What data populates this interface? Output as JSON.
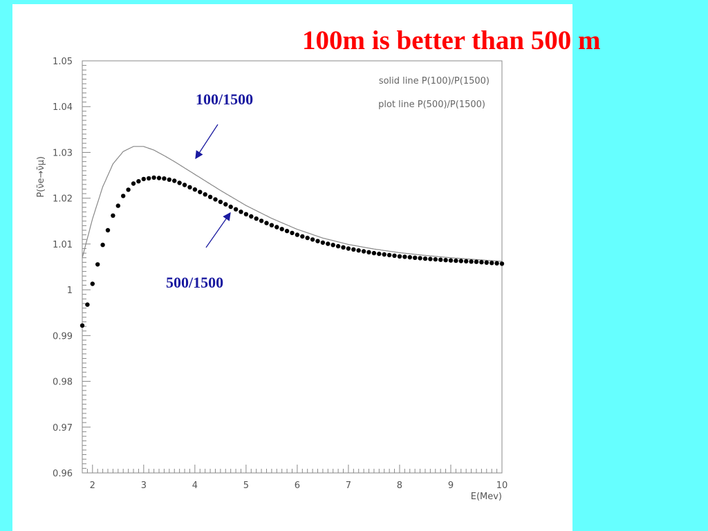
{
  "slide": {
    "title": "100m is better than 500 m",
    "background_color": "#66ffff",
    "title_color": "#ff0000",
    "annotation_color": "#1a1aa0"
  },
  "annotations": {
    "solid_label": "100/1500",
    "dotted_label": "500/1500"
  },
  "chart_data": {
    "type": "line",
    "xlabel": "E(Mev)",
    "ylabel": "P(ν̄e→ν̄μ)",
    "xlim": [
      1.8,
      10
    ],
    "ylim": [
      0.96,
      1.05
    ],
    "x_ticks": [
      "2",
      "3",
      "4",
      "5",
      "6",
      "7",
      "8",
      "9",
      "10"
    ],
    "y_ticks": [
      "0.96",
      "0.97",
      "0.98",
      "0.99",
      "1",
      "1.01",
      "1.02",
      "1.03",
      "1.04",
      "1.05"
    ],
    "grid": false,
    "legend_position": "top-right",
    "legend": [
      "solid line P(100)/P(1500)",
      "plot line P(500)/P(1500)"
    ],
    "series": [
      {
        "style": "solid",
        "color": "#888888",
        "x": [
          1.8,
          2.0,
          2.2,
          2.4,
          2.6,
          2.8,
          3.0,
          3.2,
          3.4,
          3.6,
          3.8,
          4.0,
          4.5,
          5.0,
          5.5,
          6.0,
          6.5,
          7.0,
          7.5,
          8.0,
          8.5,
          9.0,
          9.5,
          10.0
        ],
        "values": [
          1.007,
          1.0155,
          1.0225,
          1.0275,
          1.0302,
          1.0313,
          1.0313,
          1.0305,
          1.0293,
          1.028,
          1.0266,
          1.0252,
          1.0217,
          1.0184,
          1.0156,
          1.0132,
          1.0113,
          1.0099,
          1.0089,
          1.0081,
          1.0075,
          1.007,
          1.0066,
          1.0062
        ]
      },
      {
        "style": "dotted",
        "color": "#000000",
        "x": [
          1.8,
          2.0,
          2.2,
          2.4,
          2.6,
          2.8,
          3.0,
          3.2,
          3.4,
          3.6,
          3.8,
          4.0,
          4.5,
          5.0,
          5.5,
          6.0,
          6.5,
          7.0,
          7.5,
          8.0,
          8.5,
          9.0,
          9.5,
          10.0
        ],
        "values": [
          0.9922,
          1.0013,
          1.0098,
          1.0162,
          1.0205,
          1.0232,
          1.0242,
          1.0245,
          1.0243,
          1.0238,
          1.0229,
          1.0219,
          1.0192,
          1.0165,
          1.0141,
          1.012,
          1.0103,
          1.009,
          1.008,
          1.0073,
          1.0068,
          1.0064,
          1.0061,
          1.0057
        ]
      }
    ]
  }
}
